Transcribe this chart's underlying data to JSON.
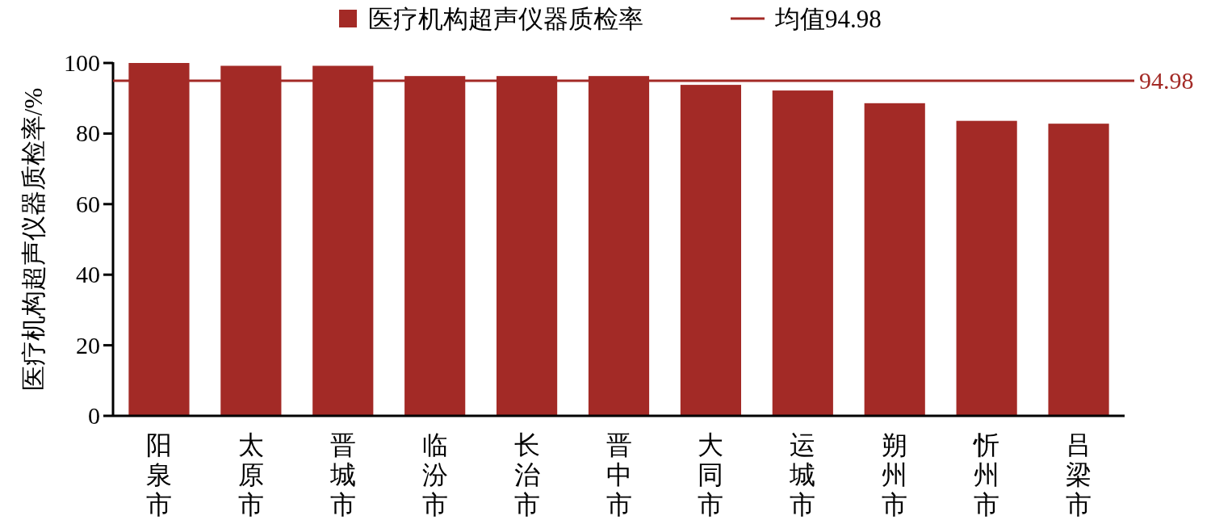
{
  "chart_data": {
    "type": "bar",
    "ylabel": "医疗机构超声仪器质检率/%",
    "categories": [
      "阳泉市",
      "太原市",
      "晋城市",
      "临汾市",
      "长治市",
      "晋中市",
      "大同市",
      "运城市",
      "朔州市",
      "忻州市",
      "吕梁市"
    ],
    "series": [
      {
        "name": "医疗机构超声仪器质检率",
        "color": "#a32a26",
        "values": [
          100,
          99.2,
          99.2,
          96.3,
          96.3,
          96.3,
          93.8,
          92.2,
          88.6,
          83.6,
          82.8
        ]
      }
    ],
    "ylim": [
      0,
      100
    ],
    "yticks": [
      0,
      20,
      40,
      60,
      80,
      100
    ],
    "ref_lines": [
      {
        "axis": "y",
        "value": 94.98,
        "label": "94.98",
        "color": "#a32a26"
      }
    ],
    "annotations": [
      "均值94.98"
    ],
    "legend": "top",
    "grid": false
  }
}
